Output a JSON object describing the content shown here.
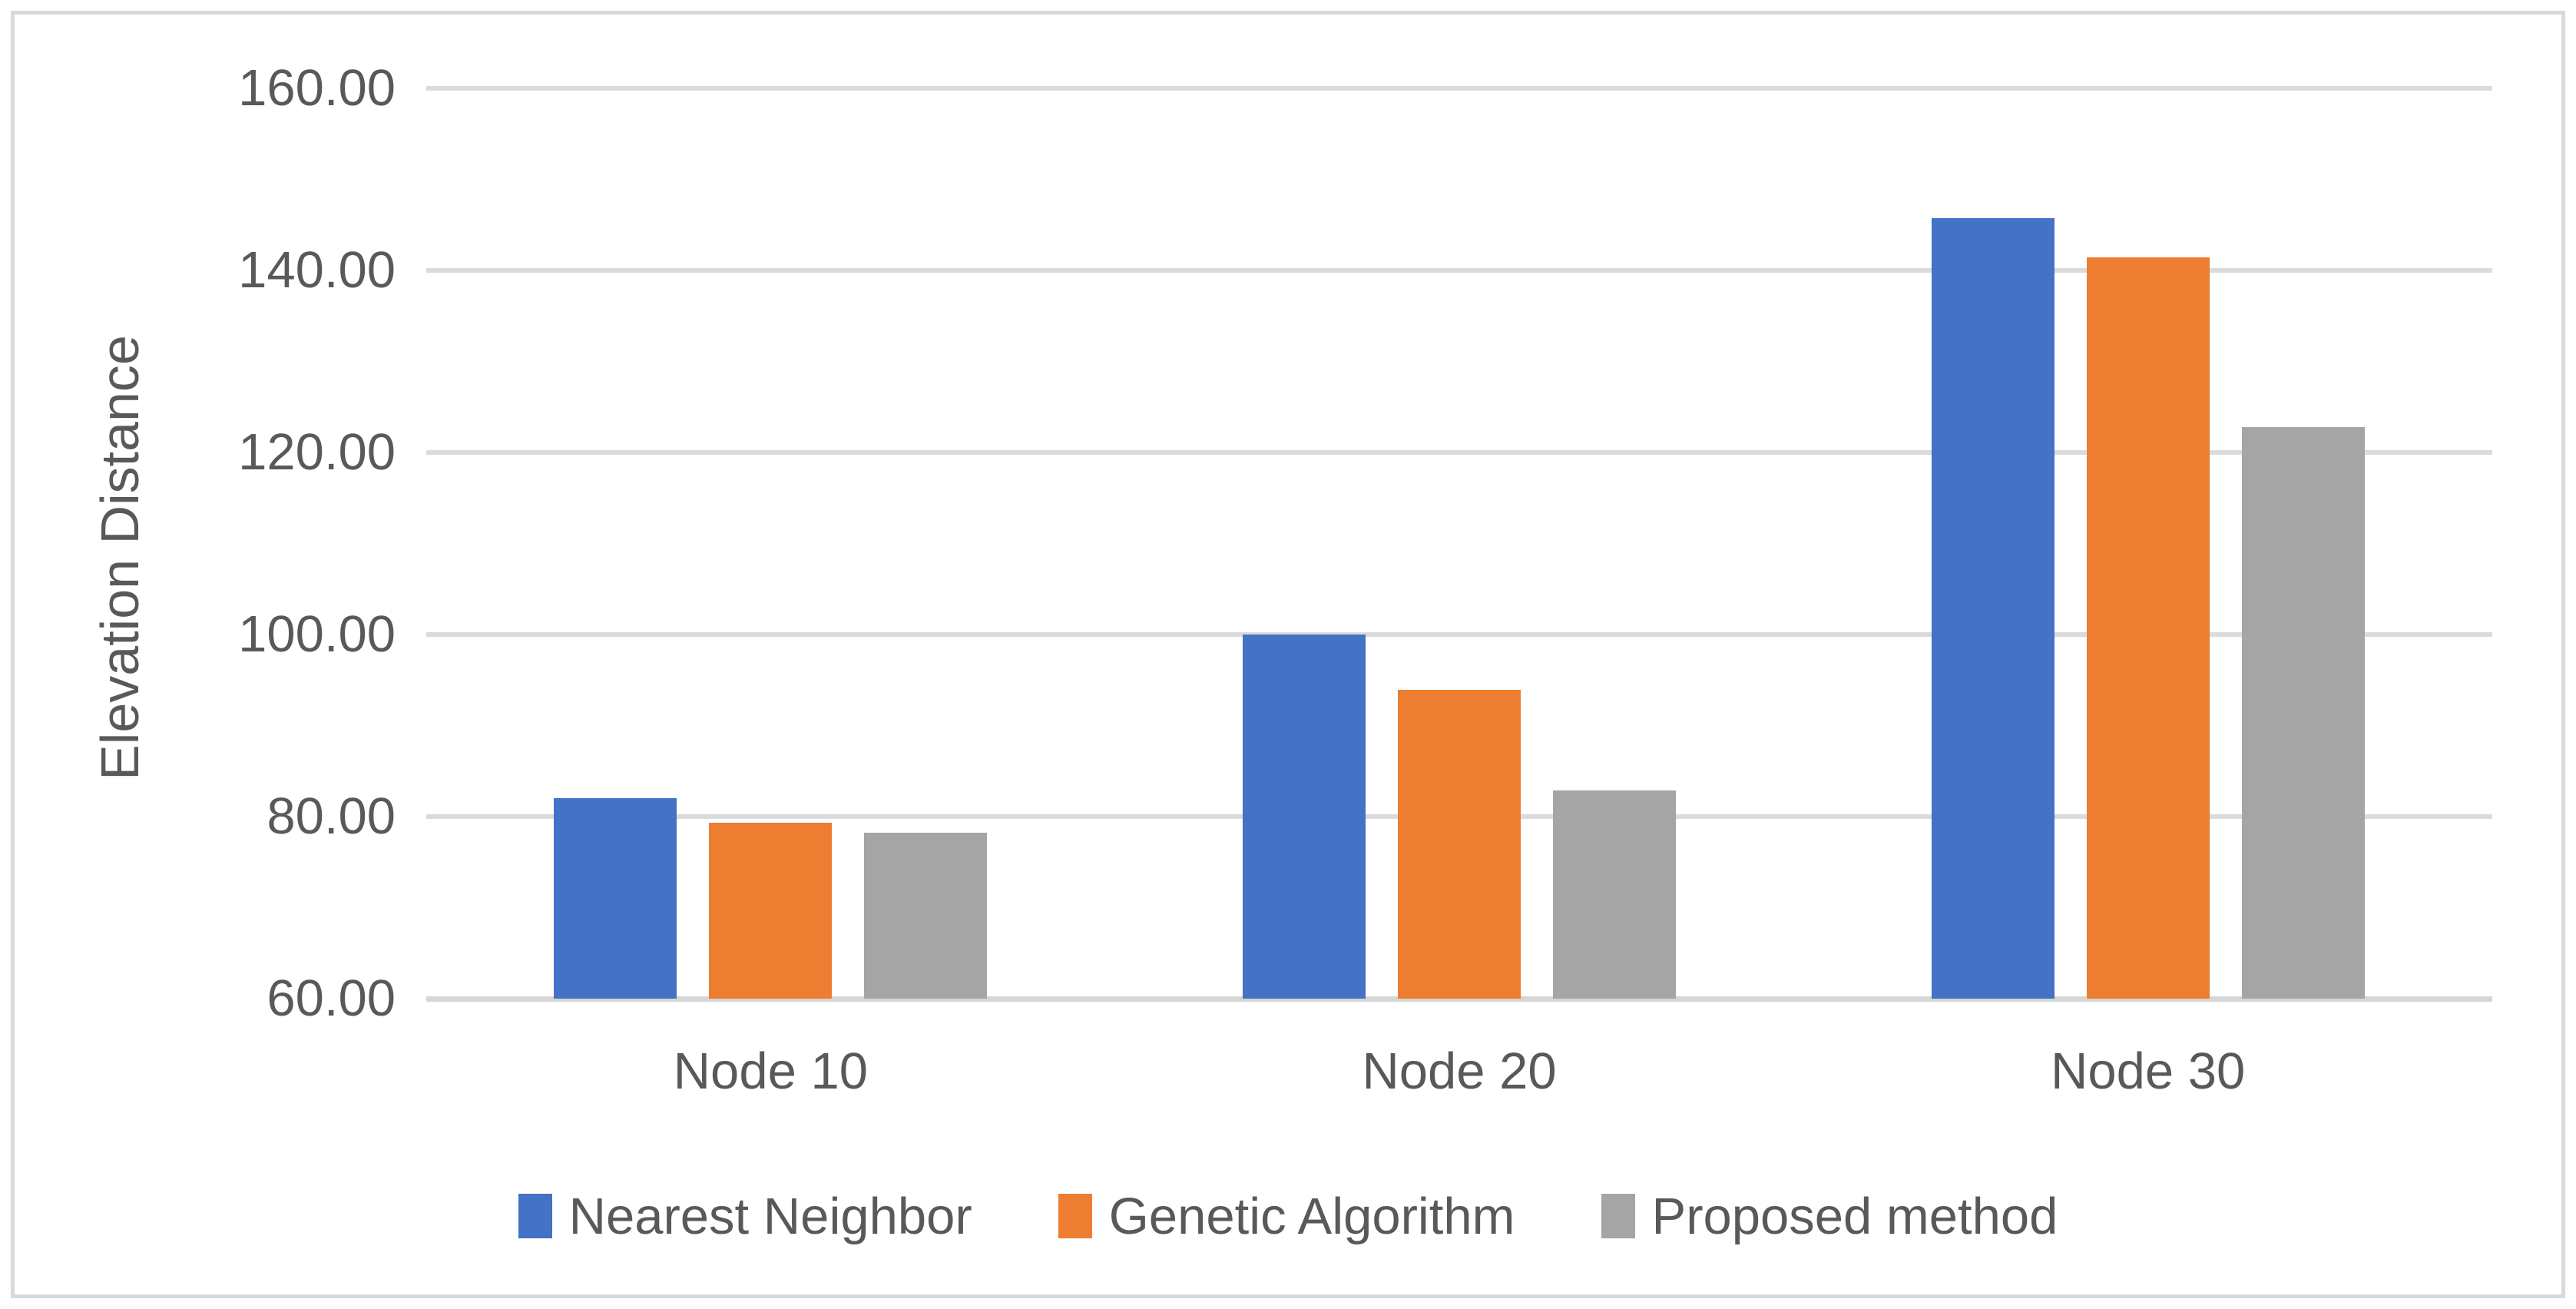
{
  "chart_data": {
    "type": "bar",
    "title": "",
    "xlabel": "",
    "ylabel": "Elevation Distance",
    "categories": [
      "Node 10",
      "Node 20",
      "Node 30"
    ],
    "series": [
      {
        "name": "Nearest Neighbor",
        "color": "#4472C4",
        "values": [
          82.0,
          100.0,
          145.7
        ]
      },
      {
        "name": "Genetic Algorithm",
        "color": "#ED7D31",
        "values": [
          79.3,
          93.9,
          141.4
        ]
      },
      {
        "name": "Proposed method",
        "color": "#A5A5A5",
        "values": [
          78.2,
          82.9,
          122.8
        ]
      }
    ],
    "ylim": [
      60,
      160
    ],
    "ytick_step": 20,
    "ytick_decimals": 2,
    "grid": "horizontal",
    "legend_position": "bottom"
  },
  "style": {
    "axis_text_color": "#595959",
    "gridline_color": "#DBDBDB",
    "frame_border_color": "#D9D9D9",
    "background": "#FFFFFF"
  }
}
